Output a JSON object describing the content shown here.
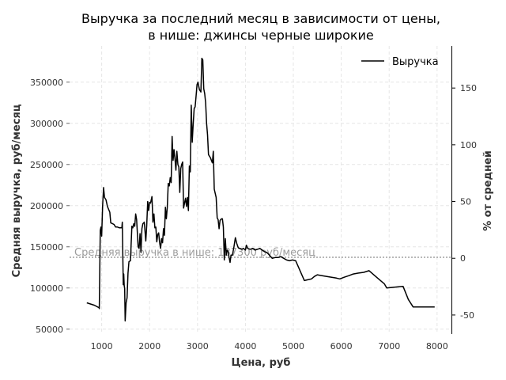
{
  "chart_data": {
    "type": "line",
    "title_line1": "Выручка за последний месяц в зависимости от цены,",
    "title_line2": "в нише: джинсы черные широкие",
    "xlabel": "Цена, руб",
    "ylabel": "Средняя выручка, руб/месяц",
    "y2label": "% от средней",
    "xlim": [
      330,
      8300
    ],
    "ylim": [
      44000,
      394000
    ],
    "y2lim": [
      -66.8,
      187.1
    ],
    "grid": true,
    "legend": {
      "position": "top-right",
      "label": "Выручка"
    },
    "xticks": [
      1000,
      2000,
      3000,
      4000,
      5000,
      6000,
      7000,
      8000
    ],
    "yticks": [
      50000,
      100000,
      150000,
      200000,
      250000,
      300000,
      350000
    ],
    "y2ticks": [
      -50,
      0,
      50,
      100,
      150
    ],
    "mean_line": {
      "value": 137300,
      "label": "Средняя выручка в нише: 137300 руб/месяц",
      "color": "#a0a0a0"
    },
    "series": [
      {
        "name": "Выручка",
        "color": "#000000",
        "points": [
          [
            690,
            82000
          ],
          [
            850,
            79000
          ],
          [
            945,
            76000
          ],
          [
            950,
            75000
          ],
          [
            970,
            170000
          ],
          [
            985,
            174000
          ],
          [
            1000,
            163000
          ],
          [
            1020,
            200000
          ],
          [
            1040,
            222000
          ],
          [
            1060,
            210000
          ],
          [
            1090,
            207000
          ],
          [
            1120,
            199000
          ],
          [
            1170,
            192000
          ],
          [
            1190,
            179000
          ],
          [
            1230,
            178000
          ],
          [
            1260,
            177000
          ],
          [
            1290,
            174000
          ],
          [
            1330,
            174000
          ],
          [
            1370,
            173000
          ],
          [
            1420,
            173000
          ],
          [
            1430,
            180000
          ],
          [
            1450,
            104000
          ],
          [
            1460,
            117000
          ],
          [
            1470,
            103000
          ],
          [
            1480,
            99000
          ],
          [
            1490,
            60000
          ],
          [
            1510,
            82000
          ],
          [
            1530,
            88000
          ],
          [
            1550,
            118000
          ],
          [
            1570,
            132000
          ],
          [
            1600,
            133000
          ],
          [
            1630,
            175000
          ],
          [
            1650,
            173000
          ],
          [
            1670,
            178000
          ],
          [
            1690,
            175000
          ],
          [
            1710,
            190000
          ],
          [
            1730,
            183000
          ],
          [
            1760,
            150000
          ],
          [
            1780,
            148000
          ],
          [
            1800,
            166000
          ],
          [
            1820,
            143000
          ],
          [
            1840,
            172000
          ],
          [
            1860,
            178000
          ],
          [
            1890,
            180000
          ],
          [
            1920,
            157000
          ],
          [
            1940,
            176000
          ],
          [
            1960,
            205000
          ],
          [
            1980,
            194000
          ],
          [
            2000,
            204000
          ],
          [
            2020,
            203000
          ],
          [
            2050,
            211000
          ],
          [
            2070,
            180000
          ],
          [
            2090,
            190000
          ],
          [
            2110,
            173000
          ],
          [
            2130,
            174000
          ],
          [
            2150,
            156000
          ],
          [
            2170,
            165000
          ],
          [
            2190,
            167000
          ],
          [
            2210,
            155000
          ],
          [
            2230,
            148000
          ],
          [
            2250,
            160000
          ],
          [
            2270,
            155000
          ],
          [
            2290,
            172000
          ],
          [
            2310,
            164000
          ],
          [
            2330,
            198000
          ],
          [
            2350,
            184000
          ],
          [
            2370,
            198000
          ],
          [
            2390,
            227000
          ],
          [
            2410,
            224000
          ],
          [
            2430,
            234000
          ],
          [
            2450,
            228000
          ],
          [
            2470,
            284000
          ],
          [
            2490,
            255000
          ],
          [
            2510,
            268000
          ],
          [
            2530,
            257000
          ],
          [
            2550,
            243000
          ],
          [
            2570,
            266000
          ],
          [
            2590,
            250000
          ],
          [
            2610,
            247000
          ],
          [
            2630,
            216000
          ],
          [
            2650,
            245000
          ],
          [
            2670,
            250000
          ],
          [
            2690,
            253000
          ],
          [
            2710,
            197000
          ],
          [
            2730,
            203000
          ],
          [
            2750,
            209000
          ],
          [
            2770,
            199000
          ],
          [
            2790,
            210000
          ],
          [
            2810,
            194000
          ],
          [
            2830,
            248000
          ],
          [
            2850,
            241000
          ],
          [
            2870,
            322000
          ],
          [
            2890,
            277000
          ],
          [
            2910,
            300000
          ],
          [
            2930,
            318000
          ],
          [
            2950,
            320000
          ],
          [
            2970,
            333000
          ],
          [
            2990,
            347000
          ],
          [
            3010,
            350000
          ],
          [
            3040,
            341000
          ],
          [
            3070,
            338000
          ],
          [
            3090,
            379000
          ],
          [
            3110,
            377000
          ],
          [
            3130,
            342000
          ],
          [
            3150,
            336000
          ],
          [
            3170,
            325000
          ],
          [
            3190,
            300000
          ],
          [
            3210,
            286000
          ],
          [
            3230,
            262000
          ],
          [
            3250,
            260000
          ],
          [
            3270,
            258000
          ],
          [
            3290,
            255000
          ],
          [
            3310,
            252000
          ],
          [
            3330,
            266000
          ],
          [
            3350,
            220000
          ],
          [
            3370,
            215000
          ],
          [
            3390,
            210000
          ],
          [
            3410,
            185000
          ],
          [
            3430,
            183000
          ],
          [
            3450,
            172000
          ],
          [
            3470,
            182000
          ],
          [
            3500,
            184000
          ],
          [
            3520,
            184000
          ],
          [
            3540,
            174000
          ],
          [
            3560,
            134000
          ],
          [
            3580,
            160000
          ],
          [
            3600,
            140000
          ],
          [
            3620,
            146000
          ],
          [
            3640,
            144000
          ],
          [
            3660,
            137000
          ],
          [
            3680,
            131000
          ],
          [
            3700,
            140000
          ],
          [
            3730,
            140000
          ],
          [
            3760,
            150000
          ],
          [
            3790,
            161000
          ],
          [
            3820,
            154000
          ],
          [
            3850,
            149000
          ],
          [
            3880,
            148000
          ],
          [
            3920,
            147000
          ],
          [
            3960,
            148000
          ],
          [
            4000,
            146000
          ],
          [
            4020,
            152000
          ],
          [
            4050,
            148000
          ],
          [
            4100,
            147000
          ],
          [
            4150,
            148000
          ],
          [
            4200,
            146000
          ],
          [
            4250,
            147000
          ],
          [
            4300,
            148000
          ],
          [
            4350,
            146000
          ],
          [
            4400,
            144000
          ],
          [
            4450,
            143000
          ],
          [
            4500,
            140000
          ],
          [
            4560,
            136000
          ],
          [
            4620,
            137000
          ],
          [
            4680,
            137000
          ],
          [
            4740,
            138000
          ],
          [
            4800,
            136000
          ],
          [
            4860,
            134000
          ],
          [
            4920,
            133000
          ],
          [
            4980,
            134000
          ],
          [
            5050,
            133000
          ],
          [
            5110,
            125000
          ],
          [
            5170,
            117000
          ],
          [
            5230,
            109000
          ],
          [
            5300,
            110000
          ],
          [
            5380,
            111000
          ],
          [
            5440,
            114000
          ],
          [
            5500,
            116000
          ],
          [
            5600,
            115000
          ],
          [
            5700,
            114000
          ],
          [
            5800,
            113000
          ],
          [
            5900,
            112000
          ],
          [
            5970,
            111000
          ],
          [
            6060,
            113000
          ],
          [
            6160,
            115000
          ],
          [
            6250,
            117000
          ],
          [
            6350,
            118000
          ],
          [
            6470,
            119000
          ],
          [
            6580,
            121000
          ],
          [
            6700,
            115000
          ],
          [
            6800,
            110000
          ],
          [
            6900,
            105000
          ],
          [
            6950,
            100000
          ],
          [
            7290,
            102000
          ],
          [
            7400,
            86000
          ],
          [
            7500,
            77000
          ],
          [
            7600,
            77000
          ],
          [
            7700,
            77000
          ],
          [
            7850,
            77000
          ],
          [
            7950,
            77000
          ]
        ]
      }
    ]
  }
}
